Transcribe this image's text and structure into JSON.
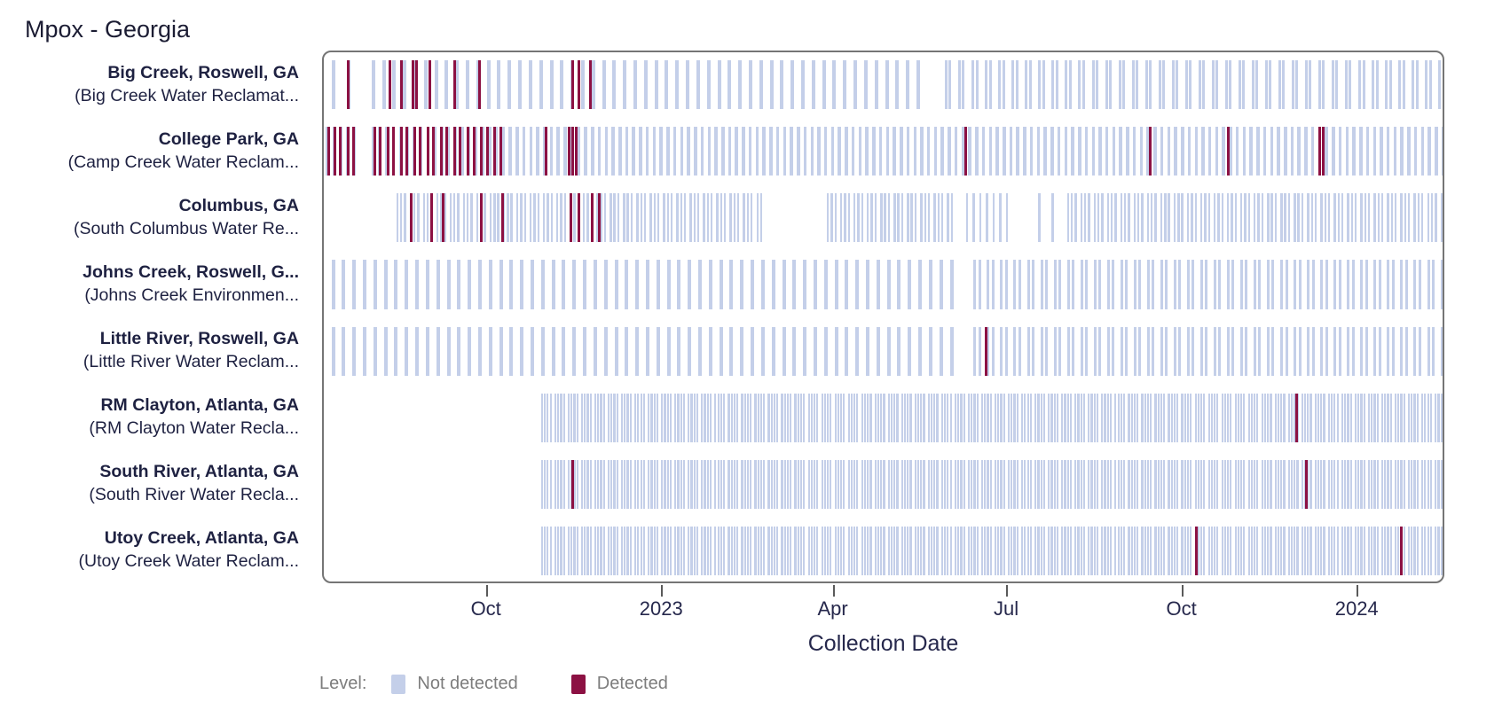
{
  "title": "Mpox - Georgia",
  "chart_data": {
    "type": "status-strip-timeline",
    "title": "Mpox - Georgia",
    "xlabel": "Collection Date",
    "x_domain": [
      "2022-07-07",
      "2024-02-16"
    ],
    "x_ticks": [
      {
        "date": "2022-10-01",
        "label": "Oct"
      },
      {
        "date": "2023-01-01",
        "label": "2023"
      },
      {
        "date": "2023-04-01",
        "label": "Apr"
      },
      {
        "date": "2023-07-01",
        "label": "Jul"
      },
      {
        "date": "2023-10-01",
        "label": "Oct"
      },
      {
        "date": "2024-01-01",
        "label": "2024"
      }
    ],
    "legend": {
      "title": "Level:",
      "items": [
        {
          "label": "Not detected",
          "value": "not_detected",
          "color": "#c4cfe9"
        },
        {
          "label": "Detected",
          "value": "detected",
          "color": "#8c1143"
        }
      ]
    },
    "sites": [
      {
        "name": "Big Creek, Roswell, GA",
        "facility": "(Big Creek Water Reclamat...",
        "segments": [
          {
            "start": "2022-07-11",
            "end": "2022-07-19",
            "every": 8,
            "w": 4
          },
          {
            "start": "2022-08-01",
            "end": "2023-05-19",
            "every": 5.5,
            "w": 4
          },
          {
            "start": "2023-05-29",
            "end": "2024-02-14",
            "pattern": [
              0,
              2
            ],
            "w": 3
          }
        ],
        "detections": [
          "2022-07-19",
          "2022-08-10",
          "2022-08-16",
          "2022-08-22",
          "2022-08-24",
          "2022-08-31",
          "2022-09-13",
          "2022-09-26",
          "2022-11-14",
          "2022-11-17",
          "2022-11-23"
        ]
      },
      {
        "name": "College Park, GA",
        "facility": "(Camp Creek Water Reclam...",
        "segments": [
          {
            "start": "2022-07-08",
            "end": "2022-07-23",
            "every": 3.5,
            "w": 4
          },
          {
            "start": "2022-08-01",
            "end": "2024-02-14",
            "every": 3.6,
            "w": 3.5
          }
        ],
        "detections": [
          "2022-07-09",
          "2022-07-12",
          "2022-07-15",
          "2022-07-19",
          "2022-07-22",
          "2022-08-02",
          "2022-08-05",
          "2022-08-09",
          "2022-08-12",
          "2022-08-16",
          "2022-08-19",
          "2022-08-23",
          "2022-08-26",
          "2022-08-30",
          "2022-09-02",
          "2022-09-06",
          "2022-09-09",
          "2022-09-13",
          "2022-09-16",
          "2022-09-20",
          "2022-09-23",
          "2022-09-27",
          "2022-09-30",
          "2022-10-04",
          "2022-10-07",
          "2022-10-31",
          "2022-11-12",
          "2022-11-14",
          "2022-11-16",
          "2023-06-08",
          "2023-09-13",
          "2023-10-24",
          "2023-12-11",
          "2023-12-13"
        ]
      },
      {
        "name": "Columbus, GA",
        "facility": "(South Columbus Water Re...",
        "segments": [
          {
            "start": "2022-08-14",
            "end": "2023-02-21",
            "pattern": [
              0,
              2,
              4
            ],
            "w": 2.4
          },
          {
            "start": "2023-03-28",
            "end": "2023-06-02",
            "pattern": [
              0,
              2,
              4
            ],
            "w": 2.4
          },
          {
            "start": "2023-06-09",
            "end": "2023-07-03",
            "every": 3.5,
            "w": 2.4
          },
          {
            "start": "2023-07-17",
            "end": "2023-07-24",
            "every": 7,
            "w": 2.4
          },
          {
            "start": "2023-08-01",
            "end": "2024-02-14",
            "pattern": [
              0,
              2,
              4
            ],
            "w": 2.4
          }
        ],
        "detections": [
          "2022-08-21",
          "2022-09-01",
          "2022-09-07",
          "2022-09-27",
          "2022-10-08",
          "2022-11-13",
          "2022-11-17",
          "2022-11-24",
          "2022-11-28"
        ]
      },
      {
        "name": "Johns Creek, Roswell, G...",
        "facility": "(Johns Creek Environmen...",
        "segments": [
          {
            "start": "2022-07-11",
            "end": "2023-06-02",
            "every": 5.5,
            "w": 4
          },
          {
            "start": "2023-06-13",
            "end": "2024-02-14",
            "pattern": [
              0,
              2.5
            ],
            "w": 3
          }
        ],
        "detections": []
      },
      {
        "name": "Little River, Roswell, GA",
        "facility": "(Little River Water Reclam...",
        "segments": [
          {
            "start": "2022-07-11",
            "end": "2023-06-02",
            "every": 5.5,
            "w": 4
          },
          {
            "start": "2023-06-13",
            "end": "2024-02-14",
            "pattern": [
              0,
              2.5
            ],
            "w": 3
          }
        ],
        "detections": [
          "2023-06-19"
        ]
      },
      {
        "name": "RM Clayton, Atlanta, GA",
        "facility": "(RM Clayton Water Recla...",
        "segments": [
          {
            "start": "2022-10-29",
            "end": "2024-02-14",
            "pattern": [
              0,
              1.5,
              3,
              4.5
            ],
            "w": 2.2
          }
        ],
        "detections": [
          "2023-11-29"
        ]
      },
      {
        "name": "South River, Atlanta, GA",
        "facility": "(South River Water Recla...",
        "segments": [
          {
            "start": "2022-10-29",
            "end": "2024-02-14",
            "pattern": [
              0,
              1.5,
              3,
              4.5
            ],
            "w": 2.2
          }
        ],
        "detections": [
          "2022-11-14",
          "2023-12-04"
        ]
      },
      {
        "name": "Utoy Creek, Atlanta, GA",
        "facility": "(Utoy Creek Water Reclam...",
        "segments": [
          {
            "start": "2022-10-29",
            "end": "2024-02-14",
            "pattern": [
              0,
              1.5,
              3,
              4.5
            ],
            "w": 2.2
          }
        ],
        "detections": [
          "2023-10-07",
          "2024-01-23"
        ]
      }
    ]
  },
  "colors": {
    "not_detected": "#c4cfe9",
    "detected": "#8c1143",
    "label_text": "#1e2141",
    "axis_text": "#26284c",
    "legend_text": "#7d7d7d",
    "plot_border": "#757575"
  }
}
